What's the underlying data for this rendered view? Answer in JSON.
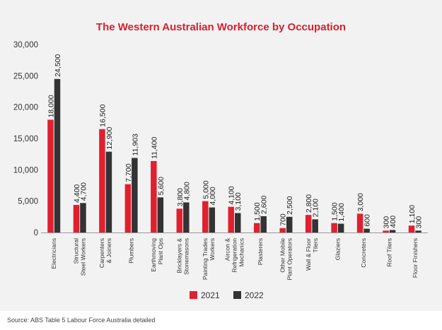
{
  "chart_data": {
    "type": "bar",
    "title": "The Western Australian Workforce by Occupation",
    "xlabel": "",
    "ylabel": "",
    "ylim": [
      0,
      30000
    ],
    "yticks": [
      "0",
      "5,000",
      "10,000",
      "15,000",
      "20,000",
      "25,000",
      "30,000"
    ],
    "ytick_values": [
      0,
      5000,
      10000,
      15000,
      20000,
      25000,
      30000
    ],
    "categories": [
      [
        "Electricians"
      ],
      [
        "Structural",
        "Steel Workers"
      ],
      [
        "Carpenters",
        "& Joiners"
      ],
      [
        "Plumbers"
      ],
      [
        "Earthmoving",
        "Plant Ops"
      ],
      [
        "Bricklayers &",
        "Stonemasons"
      ],
      [
        "Painting Trades",
        "Workers"
      ],
      [
        "Aircon &",
        "Refrigeration",
        "Mechanics"
      ],
      [
        "Plasterers"
      ],
      [
        "Other Mobile",
        "Plant Operators"
      ],
      [
        "Wall & Floor",
        "Tilers"
      ],
      [
        "Glaziers"
      ],
      [
        "Concreters"
      ],
      [
        "Roof Tilers"
      ],
      [
        "Floor Finishers"
      ]
    ],
    "series": [
      {
        "name": "2021",
        "color": "#e0202e",
        "values": [
          18000,
          4400,
          16500,
          7700,
          11400,
          3800,
          5000,
          4100,
          1500,
          700,
          2800,
          1500,
          3000,
          300,
          1100
        ],
        "labels": [
          "18,000",
          "4,400",
          "16,500",
          "7,700",
          "11,400",
          "3,800",
          "5,000",
          "4,100",
          "1,500",
          "700",
          "2,800",
          "1,500",
          "3,000",
          "300",
          "1,100"
        ]
      },
      {
        "name": "2022",
        "color": "#333333",
        "values": [
          24500,
          4700,
          12900,
          11903,
          5600,
          4800,
          4000,
          3100,
          2600,
          2500,
          2100,
          1400,
          600,
          400,
          300
        ],
        "labels": [
          "24,500",
          "4,700",
          "12,900",
          "11,903",
          "5,600",
          "4,800",
          "4,000",
          "3,100",
          "2,600",
          "2,500",
          "2,100",
          "1,400",
          "600",
          "400",
          "300"
        ]
      }
    ],
    "legend": {
      "position": "bottom-center",
      "entries": [
        "2021",
        "2022"
      ]
    },
    "grid": false
  },
  "source_note": "Source: ABS Table 5 Labour Force Australia detailed"
}
